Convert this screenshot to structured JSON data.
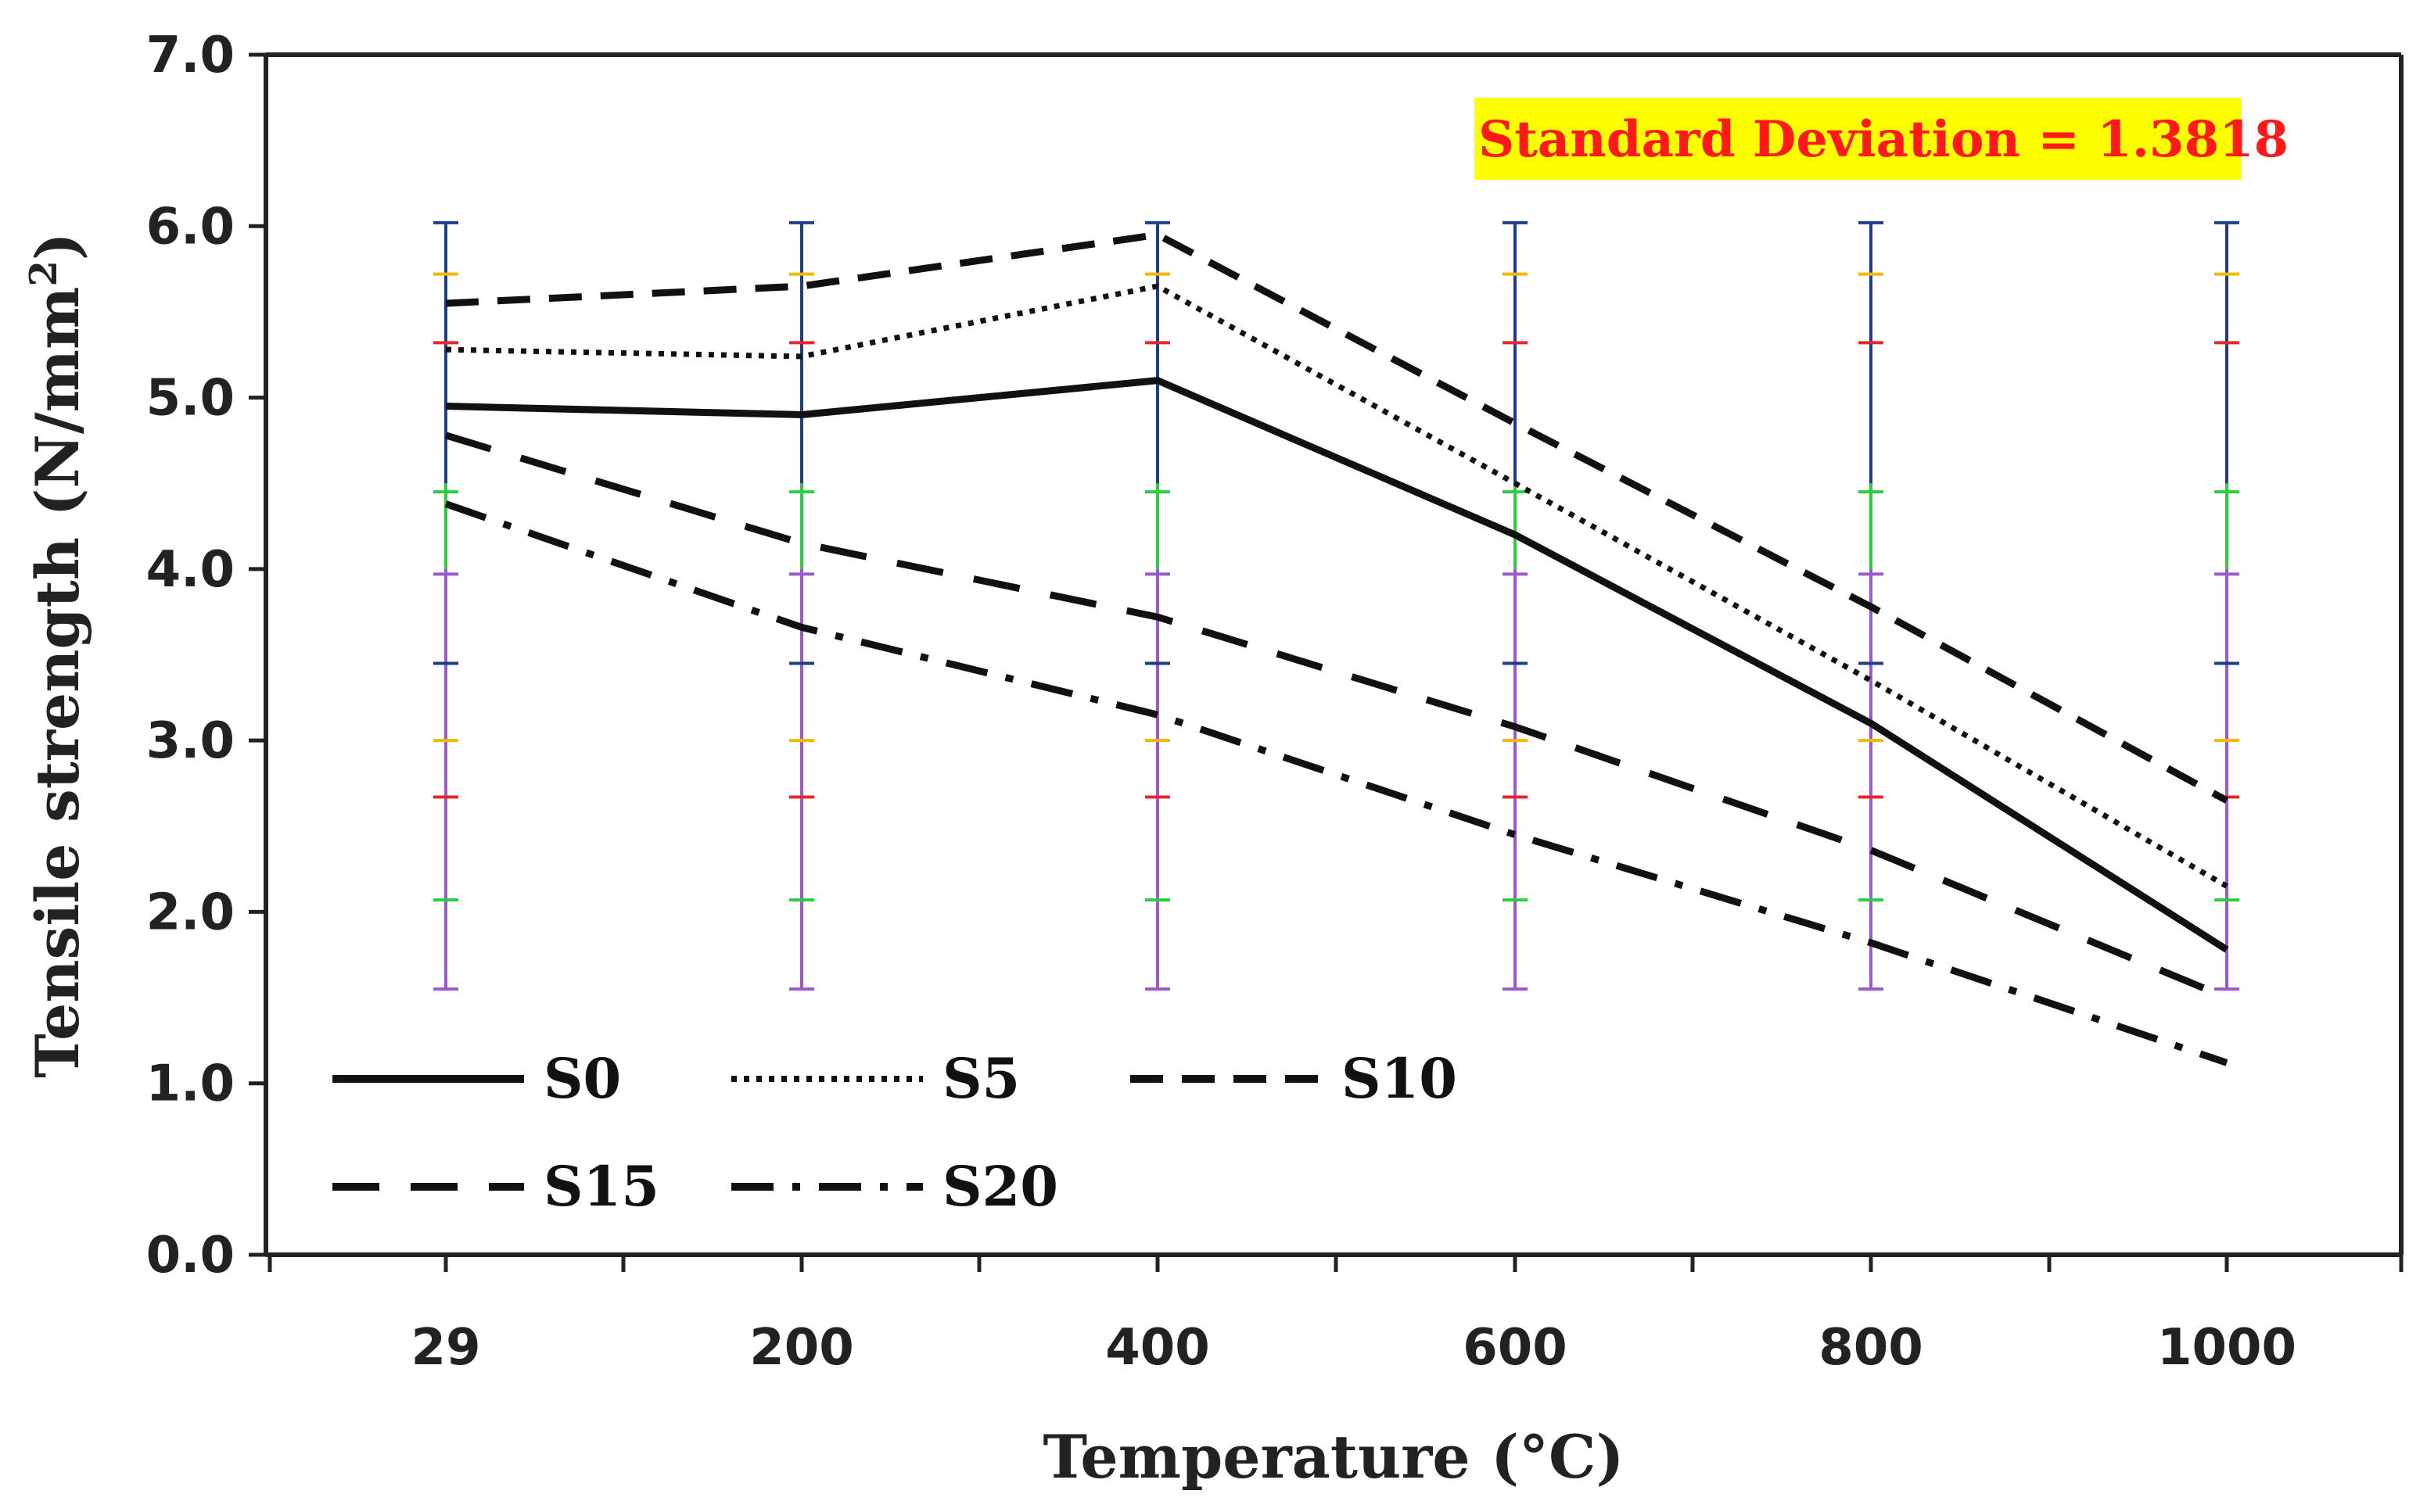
{
  "chart_data": {
    "type": "line",
    "xlabel": "Temperature (°C)",
    "ylabel": "Tensile strength (N/mm",
    "ylabel_superscript": "2",
    "ylabel_close": ")",
    "categories": [
      "29",
      "200",
      "400",
      "600",
      "800",
      "1000"
    ],
    "ylim": [
      0.0,
      7.0
    ],
    "yticks": [
      "0.0",
      "1.0",
      "2.0",
      "3.0",
      "4.0",
      "5.0",
      "6.0",
      "7.0"
    ],
    "grid": false,
    "legend_position": "bottom-left",
    "annotation": "Standard Deviation = 1.3818",
    "annotation_background": "#ffff00",
    "annotation_color": "#ff1a1a",
    "series": [
      {
        "name": "S0",
        "style": "solid",
        "values": [
          4.95,
          4.9,
          5.1,
          4.2,
          3.1,
          1.78
        ]
      },
      {
        "name": "S5",
        "style": "dotted",
        "values": [
          5.28,
          5.24,
          5.65,
          4.5,
          3.35,
          2.15
        ]
      },
      {
        "name": "S10",
        "style": "dashed",
        "values": [
          5.55,
          5.65,
          5.95,
          4.85,
          3.78,
          2.65
        ]
      },
      {
        "name": "S15",
        "style": "dashed-wide",
        "values": [
          4.78,
          4.15,
          3.72,
          3.08,
          2.36,
          1.5
        ]
      },
      {
        "name": "S20",
        "style": "dash-dot",
        "values": [
          4.38,
          3.66,
          3.15,
          2.45,
          1.82,
          1.12
        ]
      }
    ],
    "error_bars": {
      "lower": 1.55,
      "upper": 6.02,
      "segments": [
        {
          "from": 1.55,
          "to": 4.0,
          "color": "#9b59d0"
        },
        {
          "from": 4.0,
          "to": 4.5,
          "color": "#2ecc40"
        },
        {
          "from": 4.5,
          "to": 6.02,
          "color": "#1f3b8c"
        }
      ],
      "caps": [
        {
          "value": 6.02,
          "color": "#1f3b8c"
        },
        {
          "value": 5.72,
          "color": "#f5b800"
        },
        {
          "value": 5.32,
          "color": "#e8262a"
        },
        {
          "value": 4.45,
          "color": "#2ecc40"
        },
        {
          "value": 3.97,
          "color": "#9b59d0"
        },
        {
          "value": 3.45,
          "color": "#1f3b8c"
        },
        {
          "value": 3.0,
          "color": "#f5b800"
        },
        {
          "value": 2.67,
          "color": "#e8262a"
        },
        {
          "value": 2.07,
          "color": "#2ecc40"
        },
        {
          "value": 1.55,
          "color": "#9b59d0"
        }
      ]
    }
  }
}
